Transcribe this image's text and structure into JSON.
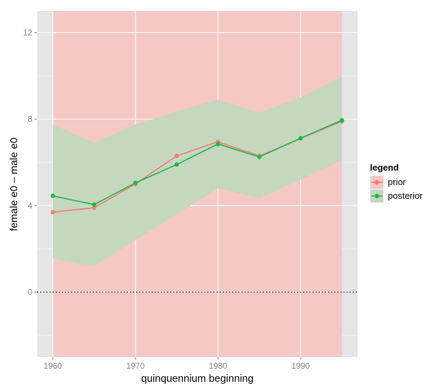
{
  "chart_data": {
    "type": "line",
    "xlabel": "quinquennium beginning",
    "ylabel": "female e0 – male e0",
    "xlim": [
      1958.1,
      1996.9
    ],
    "ylim": [
      -3.0,
      13.0
    ],
    "x_ticks": [
      1960,
      1970,
      1980,
      1990
    ],
    "x_tick_labels": [
      "1960",
      "1970",
      "1980",
      "1990"
    ],
    "y_ticks": [
      0,
      4,
      8,
      12
    ],
    "y_tick_labels": [
      "0",
      "4",
      "8",
      "12"
    ],
    "grid": true,
    "reference_line": {
      "y": 0,
      "style": "dotted"
    },
    "x": [
      1960,
      1965,
      1970,
      1975,
      1980,
      1985,
      1990,
      1995
    ],
    "series": [
      {
        "name": "prior",
        "color": "#f07f72",
        "values": [
          3.7,
          3.9,
          5.0,
          6.3,
          6.95,
          6.3,
          7.1,
          7.9
        ],
        "band": {
          "xmin": 1960,
          "xmax": 1995,
          "ymin": -3.0,
          "ymax": 13.0,
          "fill": "#f5c7c5"
        }
      },
      {
        "name": "posterior",
        "color": "#1eb84b",
        "values": [
          4.45,
          4.05,
          5.05,
          5.9,
          6.85,
          6.25,
          7.12,
          7.95
        ],
        "band": {
          "lower": [
            1.55,
            1.2,
            2.4,
            3.6,
            4.8,
            4.35,
            5.2,
            6.1
          ],
          "upper": [
            7.75,
            6.9,
            7.75,
            8.35,
            8.9,
            8.3,
            9.0,
            9.95
          ],
          "fill": "#c6d7c0"
        }
      }
    ],
    "legend": {
      "title": "legend",
      "placement": "right",
      "entries": [
        "prior",
        "posterior"
      ]
    }
  }
}
